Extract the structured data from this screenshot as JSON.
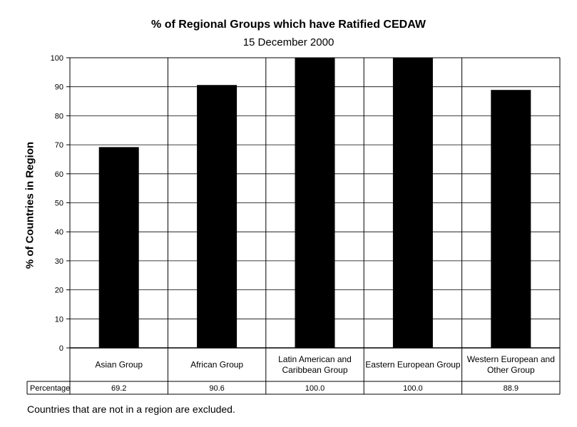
{
  "chart_data": {
    "type": "bar",
    "title": "% of Regional Groups which have Ratified CEDAW",
    "subtitle": "15 December 2000",
    "ylabel": "% of Countries in Region",
    "xlabel": "",
    "ylim": [
      0,
      100
    ],
    "yticks": [
      "0",
      "10",
      "20",
      "30",
      "40",
      "50",
      "60",
      "70",
      "80",
      "90",
      "100"
    ],
    "grid": true,
    "categories": [
      "Asian Group",
      "African Group",
      "Latin American and Caribbean Group",
      "Eastern European Group",
      "Western European and Other Group"
    ],
    "category_lines": [
      [
        "Asian Group"
      ],
      [
        "African Group"
      ],
      [
        "Latin American and",
        "Caribbean Group"
      ],
      [
        "Eastern European Group"
      ],
      [
        "Western European and",
        "Other Group"
      ]
    ],
    "values": [
      69.2,
      90.6,
      100.0,
      100.0,
      88.9
    ],
    "bar_color": "#000000",
    "table": {
      "row_label": "Percentage",
      "values": [
        "69.2",
        "90.6",
        "100.0",
        "100.0",
        "88.9"
      ]
    }
  },
  "footnote": "Countries that are not in a region are excluded."
}
